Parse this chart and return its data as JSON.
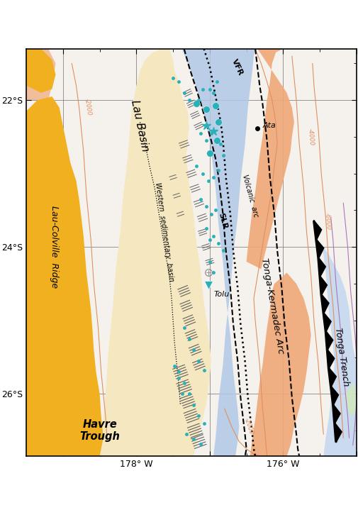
{
  "lon_min": -179.5,
  "lon_max": -175.0,
  "lat_min": -26.85,
  "lat_max": -21.3,
  "figw": 5.05,
  "figh": 7.12,
  "dpi": 100,
  "bg_color": "#f5f2ee",
  "lau_basin_color": "#f5e8c0",
  "lau_colville_color": "#f0b020",
  "tonga_arc_color": "#f0a878",
  "blue_arc_color": "#b0c8e8",
  "trench_fill_color": "#c0d4f0",
  "green_patch_color": "#d0e8c0",
  "contour_red": "#e09060",
  "contour_purple": "#a878b8",
  "fault_color": "#606060",
  "grid_lons": [
    -179.0,
    -178.0,
    -177.0,
    -176.0,
    -175.0
  ],
  "grid_lats": [
    -22.0,
    -24.0,
    -26.0
  ],
  "xtick_labels": [
    "",
    "178° W",
    "",
    "176° W",
    ""
  ],
  "ytick_labels": [
    "22°S",
    "24°S",
    "26°S"
  ]
}
